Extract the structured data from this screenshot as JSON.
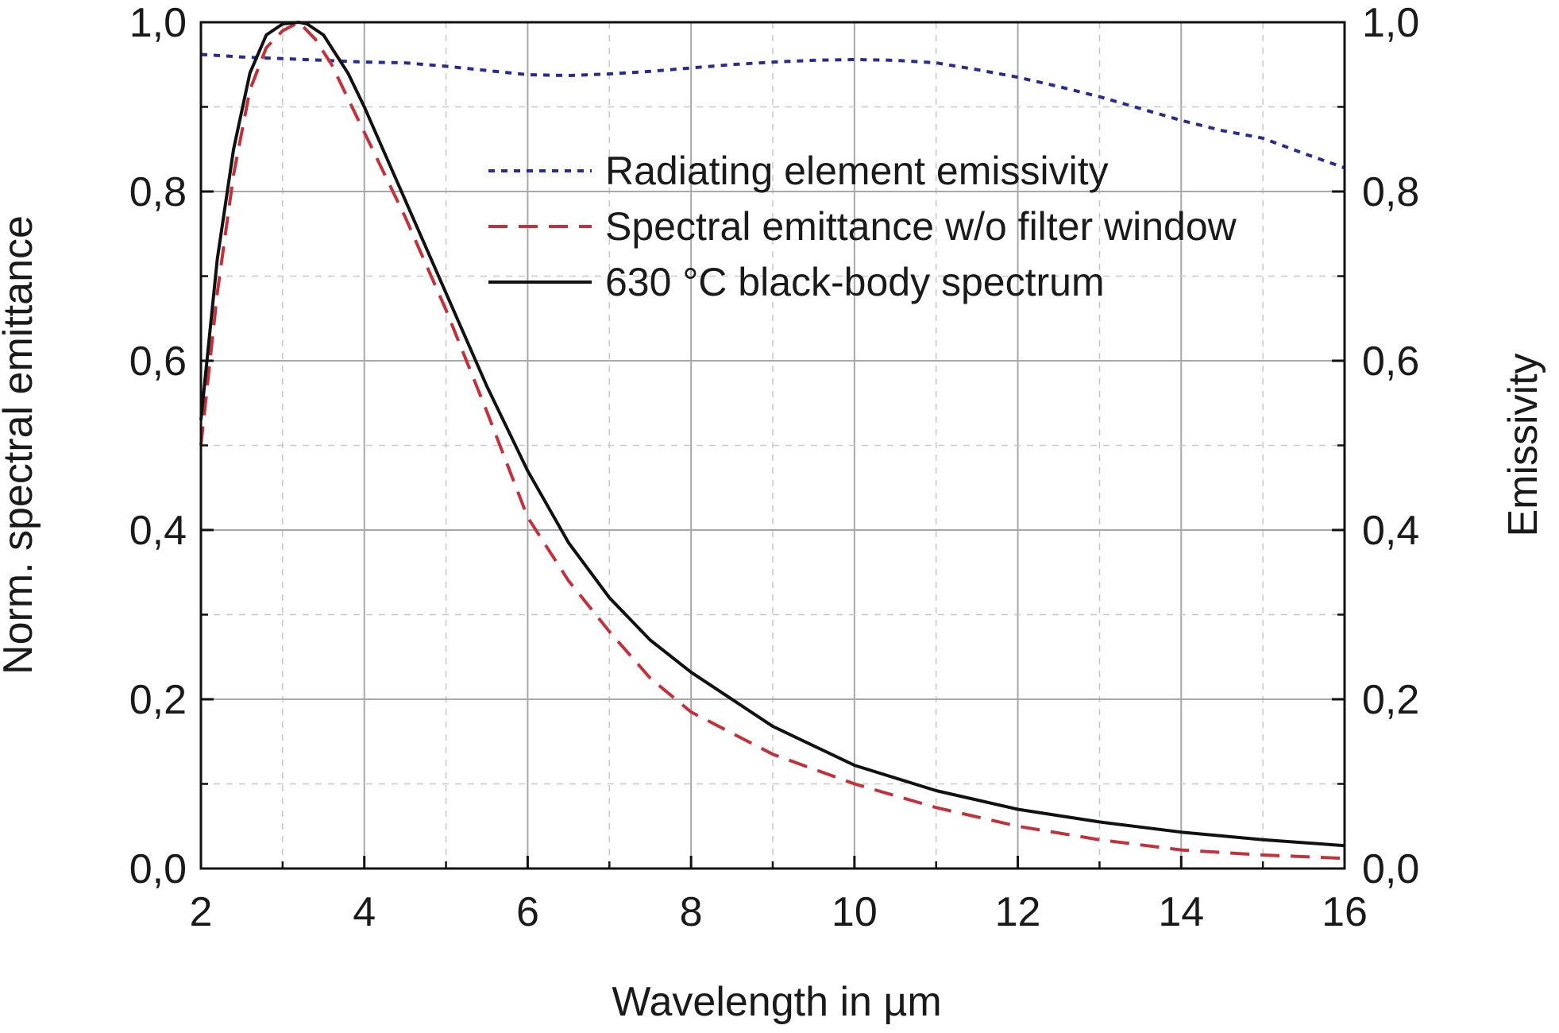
{
  "chart_data": {
    "type": "line",
    "xlabel": "Wavelength in µm",
    "ylabel": "Norm. spectral emittance",
    "y2label": "Emissivity",
    "xlim": [
      2,
      16
    ],
    "ylim": [
      0,
      1
    ],
    "y2lim": [
      0,
      1
    ],
    "x_ticks": [
      "2",
      "4",
      "6",
      "8",
      "10",
      "12",
      "14",
      "16"
    ],
    "y_ticks": [
      "0,0",
      "0,2",
      "0,4",
      "0,6",
      "0,8",
      "1,0"
    ],
    "y2_ticks": [
      "0,0",
      "0,2",
      "0,4",
      "0,6",
      "0,8",
      "1,0"
    ],
    "grid": true,
    "legend_position": "top-right",
    "series": [
      {
        "name": "Radiating element emissivity",
        "axis": "right",
        "color": "#2b2b8f",
        "style": "dotted",
        "x": [
          2,
          2.5,
          3,
          3.5,
          4,
          4.5,
          5,
          5.5,
          6,
          6.5,
          7,
          7.5,
          8,
          8.5,
          9,
          9.5,
          10,
          10.5,
          11,
          11.5,
          12,
          12.5,
          13,
          13.5,
          14,
          14.5,
          15,
          15.5,
          16
        ],
        "y": [
          0.962,
          0.959,
          0.957,
          0.955,
          0.953,
          0.952,
          0.948,
          0.943,
          0.938,
          0.937,
          0.939,
          0.942,
          0.946,
          0.95,
          0.953,
          0.955,
          0.956,
          0.955,
          0.952,
          0.944,
          0.935,
          0.924,
          0.912,
          0.898,
          0.884,
          0.872,
          0.863,
          0.845,
          0.828
        ]
      },
      {
        "name": "Spectral emittance w/o filter window",
        "axis": "left",
        "color": "#c0323c",
        "style": "dashed",
        "x": [
          2,
          2.2,
          2.4,
          2.6,
          2.8,
          3,
          3.2,
          3.4,
          3.6,
          3.8,
          4,
          4.5,
          5,
          5.5,
          6,
          6.5,
          7,
          7.5,
          8,
          9,
          10,
          11,
          12,
          13,
          14,
          15,
          16
        ],
        "y": [
          0.5,
          0.68,
          0.82,
          0.92,
          0.97,
          0.99,
          1.0,
          0.98,
          0.95,
          0.91,
          0.87,
          0.77,
          0.66,
          0.54,
          0.415,
          0.34,
          0.28,
          0.225,
          0.185,
          0.135,
          0.1,
          0.072,
          0.05,
          0.034,
          0.022,
          0.016,
          0.012
        ]
      },
      {
        "name": "630 °C black-body spectrum",
        "axis": "left",
        "color": "#111111",
        "style": "solid",
        "x": [
          2,
          2.2,
          2.4,
          2.6,
          2.8,
          3,
          3.2,
          3.3,
          3.5,
          3.8,
          4,
          4.5,
          5,
          5.5,
          6,
          6.5,
          7,
          7.5,
          8,
          9,
          10,
          11,
          12,
          13,
          14,
          15,
          16
        ],
        "y": [
          0.53,
          0.72,
          0.85,
          0.94,
          0.985,
          0.998,
          1.0,
          0.998,
          0.985,
          0.94,
          0.9,
          0.79,
          0.68,
          0.57,
          0.47,
          0.385,
          0.32,
          0.27,
          0.232,
          0.168,
          0.122,
          0.092,
          0.07,
          0.055,
          0.043,
          0.034,
          0.027
        ]
      }
    ]
  }
}
